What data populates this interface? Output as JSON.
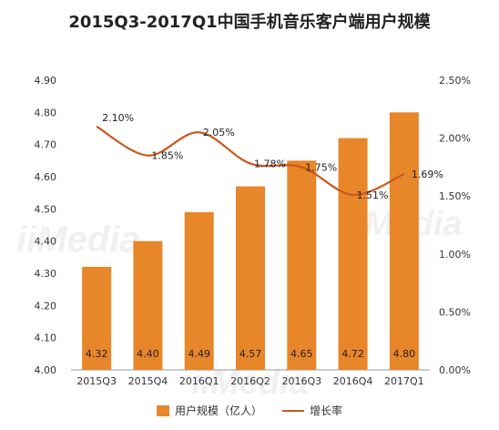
{
  "chart_data": {
    "type": "bar",
    "title": "2015Q3-2017Q1中国手机音乐客户端用户规模",
    "categories": [
      "2015Q3",
      "2015Q4",
      "2016Q1",
      "2016Q2",
      "2016Q3",
      "2016Q4",
      "2017Q1"
    ],
    "series": [
      {
        "name": "用户规模（亿人）",
        "type": "bar",
        "axis": "left",
        "values": [
          4.32,
          4.4,
          4.49,
          4.57,
          4.65,
          4.72,
          4.8
        ],
        "labels": [
          "4.32",
          "4.40",
          "4.49",
          "4.57",
          "4.65",
          "4.72",
          "4.80"
        ],
        "color": "#E8862A"
      },
      {
        "name": "增长率",
        "type": "line",
        "axis": "right",
        "values": [
          2.1,
          1.85,
          2.05,
          1.78,
          1.75,
          1.51,
          1.69
        ],
        "labels": [
          "2.10%",
          "1.85%",
          "2.05%",
          "1.78%",
          "1.75%",
          "1.51%",
          "1.69%"
        ],
        "color": "#C9581C"
      }
    ],
    "ylim_left": [
      4.0,
      4.9
    ],
    "yticks_left": [
      "4.00",
      "4.10",
      "4.20",
      "4.30",
      "4.40",
      "4.50",
      "4.60",
      "4.70",
      "4.80",
      "4.90"
    ],
    "ylim_right": [
      0.0,
      2.5
    ],
    "yticks_right": [
      "0.00%",
      "0.50%",
      "1.00%",
      "1.50%",
      "2.00%",
      "2.50%"
    ],
    "legend_position": "bottom",
    "grid": false
  }
}
